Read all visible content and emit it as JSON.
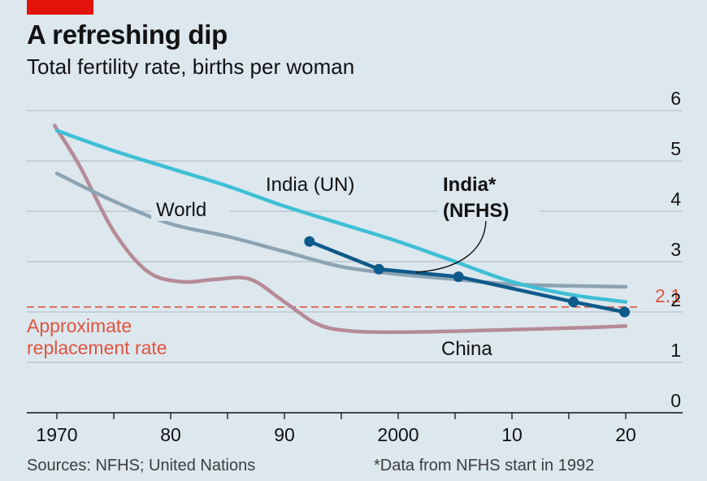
{
  "header": {
    "title": "A refreshing dip",
    "subtitle": "Total fertility rate, births per woman"
  },
  "footer": {
    "source": "Sources: NFHS; United Nations",
    "note": "*Data from NFHS start in 1992"
  },
  "colors": {
    "background": "#dce7ee",
    "accent_red": "#e3120b",
    "india_un": "#3ebfd6",
    "india_nfhs": "#0e5a8a",
    "world": "#8ca3b2",
    "china": "#b68a97",
    "replacement": "#e0543e",
    "grid": "#b4c2cb"
  },
  "chart_data": {
    "type": "line",
    "ylim": [
      0,
      6
    ],
    "xlim": [
      1970,
      2020
    ],
    "y_ticks": [
      0,
      1,
      2,
      3,
      4,
      5,
      6
    ],
    "x_ticks": [
      {
        "value": 1970,
        "label": "1970"
      },
      {
        "value": 1980,
        "label": "80"
      },
      {
        "value": 1990,
        "label": "90"
      },
      {
        "value": 2000,
        "label": "2000"
      },
      {
        "value": 2010,
        "label": "10"
      },
      {
        "value": 2020,
        "label": "20"
      }
    ],
    "reference_line": {
      "value": 2.1,
      "label": "2.1",
      "annotation_lines": [
        "Approximate",
        "replacement rate"
      ]
    },
    "series": [
      {
        "name": "China",
        "x": [
          1969.8,
          1972,
          1975,
          1978,
          1981,
          1984,
          1987,
          1990,
          1993,
          1996,
          2000,
          2005,
          2010,
          2015,
          2020
        ],
        "y": [
          5.7,
          4.9,
          3.6,
          2.8,
          2.6,
          2.65,
          2.65,
          2.2,
          1.75,
          1.62,
          1.6,
          1.62,
          1.65,
          1.68,
          1.72
        ]
      },
      {
        "name": "World",
        "x": [
          1970,
          1975,
          1980,
          1985,
          1990,
          1995,
          2000,
          2005,
          2010,
          2015,
          2020
        ],
        "y": [
          4.75,
          4.2,
          3.75,
          3.5,
          3.2,
          2.9,
          2.75,
          2.65,
          2.55,
          2.52,
          2.5
        ]
      },
      {
        "name": "India (UN)",
        "x": [
          1970,
          1975,
          1980,
          1985,
          1990,
          1995,
          2000,
          2005,
          2010,
          2015,
          2020
        ],
        "y": [
          5.6,
          5.2,
          4.85,
          4.5,
          4.1,
          3.75,
          3.4,
          3.0,
          2.6,
          2.35,
          2.2
        ]
      },
      {
        "name": "India* (NFHS)",
        "label_lines": [
          "India*",
          "(NFHS)"
        ],
        "x": [
          1992.2,
          1998.3,
          2005.3,
          2015.4,
          2019.9
        ],
        "y": [
          3.4,
          2.85,
          2.7,
          2.2,
          2.0
        ]
      }
    ]
  }
}
